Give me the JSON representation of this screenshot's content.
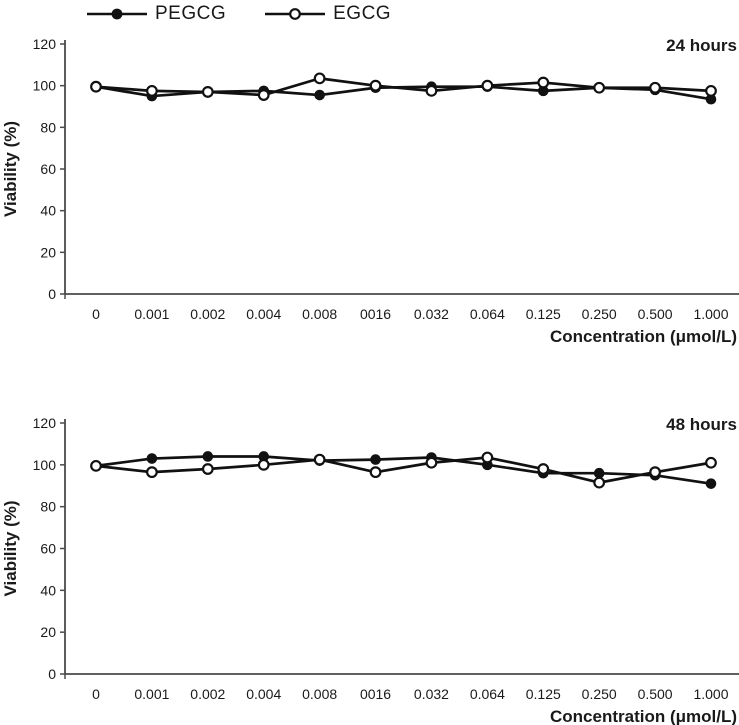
{
  "legend": {
    "items": [
      {
        "label": "PEGCG",
        "marker": "filled-circle"
      },
      {
        "label": "EGCG",
        "marker": "open-circle"
      }
    ]
  },
  "colors": {
    "series": "#111111",
    "axis": "#4a4a4a",
    "text": "#1a1a1a",
    "background": "#ffffff"
  },
  "chart_data": [
    {
      "type": "line",
      "title": "24 hours",
      "xlabel": "Concentration (μmol/L)",
      "ylabel": "Viability (%)",
      "ylim": [
        0,
        120
      ],
      "yticks": [
        0,
        20,
        40,
        60,
        80,
        100,
        120
      ],
      "grid": false,
      "legend_position": "top-left",
      "categories": [
        "0",
        "0.001",
        "0.002",
        "0.004",
        "0.008",
        "0016",
        "0.032",
        "0.064",
        "0.125",
        "0.250",
        "0.500",
        "1.000"
      ],
      "series": [
        {
          "name": "PEGCG",
          "marker": "filled-circle",
          "values": [
            99.5,
            95,
            97,
            97.5,
            95.5,
            99,
            99.5,
            99.5,
            97.5,
            99,
            98,
            93.5
          ]
        },
        {
          "name": "EGCG",
          "marker": "open-circle",
          "values": [
            99.5,
            97.5,
            97,
            95.5,
            103.5,
            100,
            97.5,
            100,
            101.5,
            99,
            99,
            97.5
          ]
        }
      ]
    },
    {
      "type": "line",
      "title": "48 hours",
      "xlabel": "Concentration (μmol/L)",
      "ylabel": "Viability (%)",
      "ylim": [
        0,
        120
      ],
      "yticks": [
        0,
        20,
        40,
        60,
        80,
        100,
        120
      ],
      "grid": false,
      "legend_position": "top-left",
      "categories": [
        "0",
        "0.001",
        "0.002",
        "0.004",
        "0.008",
        "0016",
        "0.032",
        "0.064",
        "0.125",
        "0.250",
        "0.500",
        "1.000"
      ],
      "series": [
        {
          "name": "PEGCG",
          "marker": "filled-circle",
          "values": [
            99.5,
            103,
            104,
            104,
            102,
            102.5,
            103.5,
            100,
            96,
            96,
            95,
            91
          ]
        },
        {
          "name": "EGCG",
          "marker": "open-circle",
          "values": [
            99.5,
            96.5,
            98,
            100,
            102.5,
            96.5,
            101,
            103.5,
            98,
            91.5,
            96.5,
            101
          ]
        }
      ]
    }
  ]
}
